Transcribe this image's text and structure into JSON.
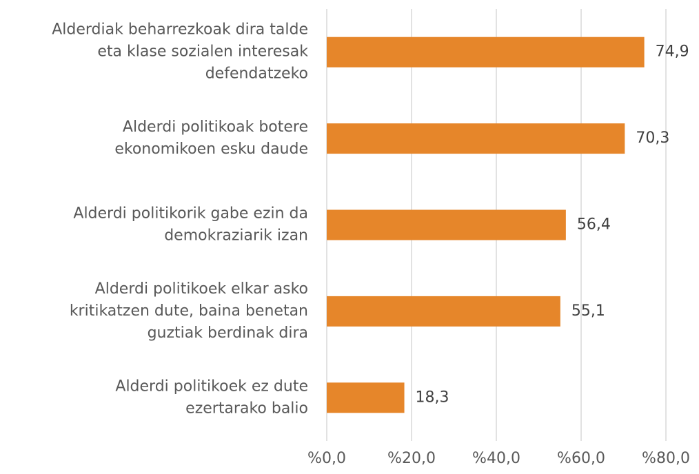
{
  "chart_data": {
    "type": "bar",
    "orientation": "horizontal",
    "categories": [
      "Alderdiak beharrezkoak dira talde\neta klase sozialen interesak\ndefendatzeko",
      "Alderdi politikoak botere\nekonomikoen esku daude",
      "Alderdi politikorik gabe ezin da\ndemokraziarik izan",
      "Alderdi politikoek elkar asko\nkritikatzen dute, baina benetan\nguztiak berdinak dira",
      "Alderdi politikoek ez dute\nezertarako balio"
    ],
    "values": [
      74.9,
      70.3,
      56.4,
      55.1,
      18.3
    ],
    "value_labels": [
      "74,9",
      "70,3",
      "56,4",
      "55,1",
      "18,3"
    ],
    "color": "#e6862a",
    "xlim": [
      0,
      80
    ],
    "xticks": [
      {
        "value": 0,
        "label": "%0,0"
      },
      {
        "value": 20,
        "label": "%20,0"
      },
      {
        "value": 40,
        "label": "%40,0"
      },
      {
        "value": 60,
        "label": "%60,0"
      },
      {
        "value": 80,
        "label": "%80,0"
      }
    ],
    "grid": true
  }
}
